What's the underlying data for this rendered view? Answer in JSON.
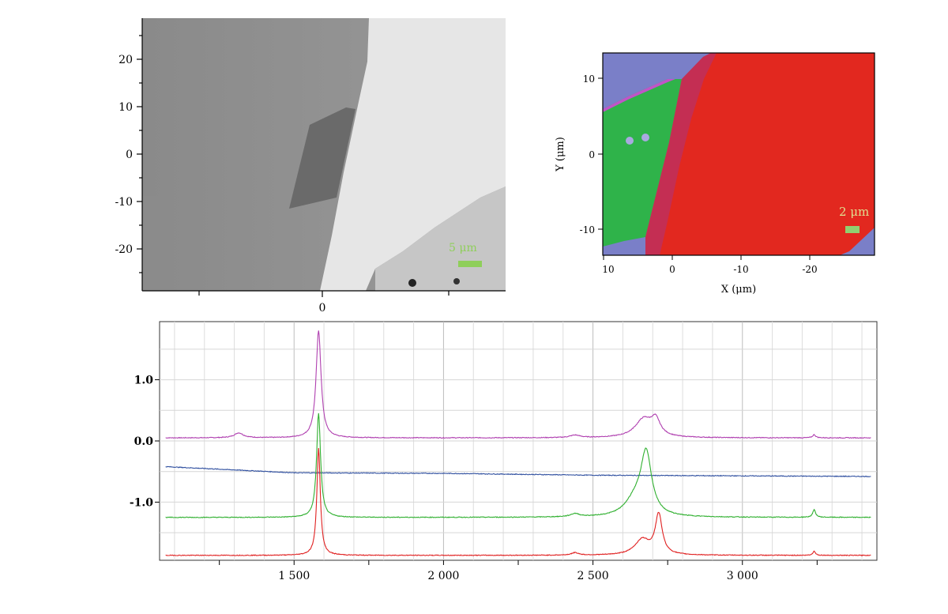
{
  "panel_a": {
    "y_ticks": [
      "20",
      "10",
      "0",
      "-10",
      "-20"
    ],
    "x_ticks": [
      "0"
    ],
    "scale_label": "5 μm",
    "colors": {
      "background": "#8f8f8f",
      "bright_region": "#e6e6e6",
      "dark_patch": "#6a6a6a",
      "scale_bar": "#8fcf5a"
    }
  },
  "panel_b": {
    "x_label": "X (μm)",
    "y_label": "Y (μm)",
    "x_ticks": [
      "10",
      "0",
      "-10",
      "-20"
    ],
    "y_ticks": [
      "10",
      "0",
      "-10"
    ],
    "scale_label": "2 μm",
    "colors": {
      "blue": "#7a7fc8",
      "green": "#2fb34a",
      "red": "#e2281f",
      "magenta": "#c055c8",
      "scale": "#e0e090"
    }
  },
  "chart_data": {
    "type": "line",
    "x_ticks": [
      1500,
      2000,
      2500,
      3000
    ],
    "x_tick_labels": [
      "1 500",
      "2 000",
      "2 500",
      "3 000"
    ],
    "y_ticks": [
      1.0,
      0.0,
      -1.0
    ],
    "y_tick_labels": [
      "1.0",
      "0.0",
      "-1.0"
    ],
    "xlim": [
      1050,
      3450
    ],
    "ylim": [
      -1.95,
      1.95
    ],
    "grid": true,
    "series": [
      {
        "color": "#b040b0",
        "baseline": 0.05,
        "peaks": [
          [
            1315,
            0.08,
            18
          ],
          [
            1582,
            1.75,
            10
          ],
          [
            2440,
            0.04,
            20
          ],
          [
            2670,
            0.3,
            35
          ],
          [
            2710,
            0.25,
            18
          ],
          [
            3240,
            0.05,
            6
          ]
        ]
      },
      {
        "color": "#3050a0",
        "baseline": -0.45,
        "drift": [
          [
            1070,
            -0.42
          ],
          [
            1500,
            -0.52
          ],
          [
            2000,
            -0.53
          ],
          [
            2500,
            -0.56
          ],
          [
            3430,
            -0.58
          ]
        ],
        "peaks": []
      },
      {
        "color": "#30b030",
        "baseline": -1.25,
        "peaks": [
          [
            1582,
            1.7,
            8
          ],
          [
            2440,
            0.05,
            18
          ],
          [
            2678,
            1.0,
            22
          ],
          [
            2640,
            0.25,
            40
          ],
          [
            3240,
            0.12,
            6
          ]
        ]
      },
      {
        "color": "#e02020",
        "baseline": -1.87,
        "peaks": [
          [
            1582,
            1.75,
            7
          ],
          [
            2440,
            0.04,
            15
          ],
          [
            2720,
            0.65,
            14
          ],
          [
            2665,
            0.25,
            30
          ],
          [
            3240,
            0.07,
            5
          ]
        ]
      }
    ]
  }
}
